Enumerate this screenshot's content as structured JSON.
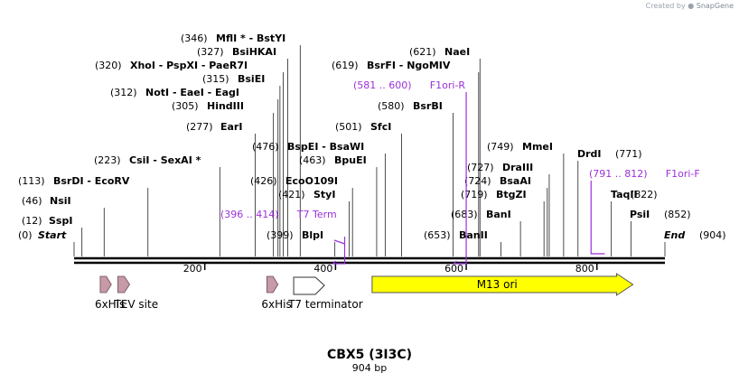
{
  "credit": {
    "prefix": "Created by",
    "brand": "SnapGene"
  },
  "sequence": {
    "name": "CBX5 (3I3C)",
    "length_label": "904 bp",
    "length": 904
  },
  "ruler": {
    "ticks": [
      200,
      400,
      600,
      800
    ]
  },
  "start_label": "Start",
  "end_label": "End",
  "sites": [
    {
      "pos": 0,
      "num": "(0)",
      "name": ""
    },
    {
      "pos": 12,
      "num": "(12)",
      "name": "SspI"
    },
    {
      "pos": 46,
      "num": "(46)",
      "name": "NsiI"
    },
    {
      "pos": 113,
      "num": "(113)",
      "name": "BsrDI  - EcoRV"
    },
    {
      "pos": 223,
      "num": "(223)",
      "name": "CsiI  - SexAI *"
    },
    {
      "pos": 277,
      "num": "(277)",
      "name": "EarI"
    },
    {
      "pos": 305,
      "num": "(305)",
      "name": "HindIII"
    },
    {
      "pos": 312,
      "num": "(312)",
      "name": "NotI  - EaeI  - EagI"
    },
    {
      "pos": 315,
      "num": "(315)",
      "name": "BsiEI"
    },
    {
      "pos": 320,
      "num": "(320)",
      "name": "XhoI  - PspXI  - PaeR7I"
    },
    {
      "pos": 327,
      "num": "(327)",
      "name": "BsiHKAI"
    },
    {
      "pos": 346,
      "num": "(346)",
      "name": "MflI * - BstYI"
    },
    {
      "pos": 476,
      "num": "(476)",
      "name": "BspEI  - BsaWI"
    },
    {
      "pos": 463,
      "num": "(463)",
      "name": "BpuEI"
    },
    {
      "pos": 426,
      "num": "(426)",
      "name": "EcoO109I"
    },
    {
      "pos": 421,
      "num": "(421)",
      "name": "StyI"
    },
    {
      "pos": 399,
      "num": "(399)",
      "name": "BlpI"
    },
    {
      "pos": 501,
      "num": "(501)",
      "name": "SfcI"
    },
    {
      "pos": 580,
      "num": "(580)",
      "name": "BsrBI"
    },
    {
      "pos": 619,
      "num": "(619)",
      "name": "BsrFI  - NgoMIV"
    },
    {
      "pos": 621,
      "num": "(621)",
      "name": "NaeI"
    },
    {
      "pos": 653,
      "num": "(653)",
      "name": "BanII"
    },
    {
      "pos": 683,
      "num": "(683)",
      "name": "BanI"
    },
    {
      "pos": 719,
      "num": "(719)",
      "name": "BtgZI"
    },
    {
      "pos": 724,
      "num": "(724)",
      "name": "BsaAI"
    },
    {
      "pos": 727,
      "num": "(727)",
      "name": "DraIII"
    },
    {
      "pos": 749,
      "num": "(749)",
      "name": "MmeI"
    },
    {
      "pos": 771,
      "num": "(771)",
      "name": "DrdI"
    },
    {
      "pos": 822,
      "num": "(822)",
      "name": "TaqII"
    },
    {
      "pos": 852,
      "num": "(852)",
      "name": "PsiI"
    },
    {
      "pos": 904,
      "num": "(904)",
      "name": ""
    }
  ],
  "primers": [
    {
      "name": "T7 Term",
      "range": "(396 .. 414)",
      "start": 396,
      "end": 414,
      "direction": "reverse"
    },
    {
      "name": "F1ori-R",
      "range": "(581 .. 600)",
      "start": 581,
      "end": 600,
      "direction": "reverse"
    },
    {
      "name": "F1ori-F",
      "range": "(791 .. 812)",
      "start": 791,
      "end": 812,
      "direction": "forward"
    }
  ],
  "features": [
    {
      "name": "6xHis",
      "type": "small-arrow",
      "start": 40,
      "end": 57,
      "color": "#c79aa7"
    },
    {
      "name": "TEV site",
      "type": "small-arrow",
      "start": 67,
      "end": 85,
      "color": "#c79aa7"
    },
    {
      "name": "6xHis",
      "type": "small-arrow",
      "start": 295,
      "end": 312,
      "color": "#c79aa7"
    },
    {
      "name": "T7 terminator",
      "type": "terminator",
      "start": 336,
      "end": 383,
      "color": "#ffffff"
    },
    {
      "name": "M13 ori",
      "type": "rep-origin",
      "start": 456,
      "end": 855,
      "color": "#ffff00"
    }
  ]
}
